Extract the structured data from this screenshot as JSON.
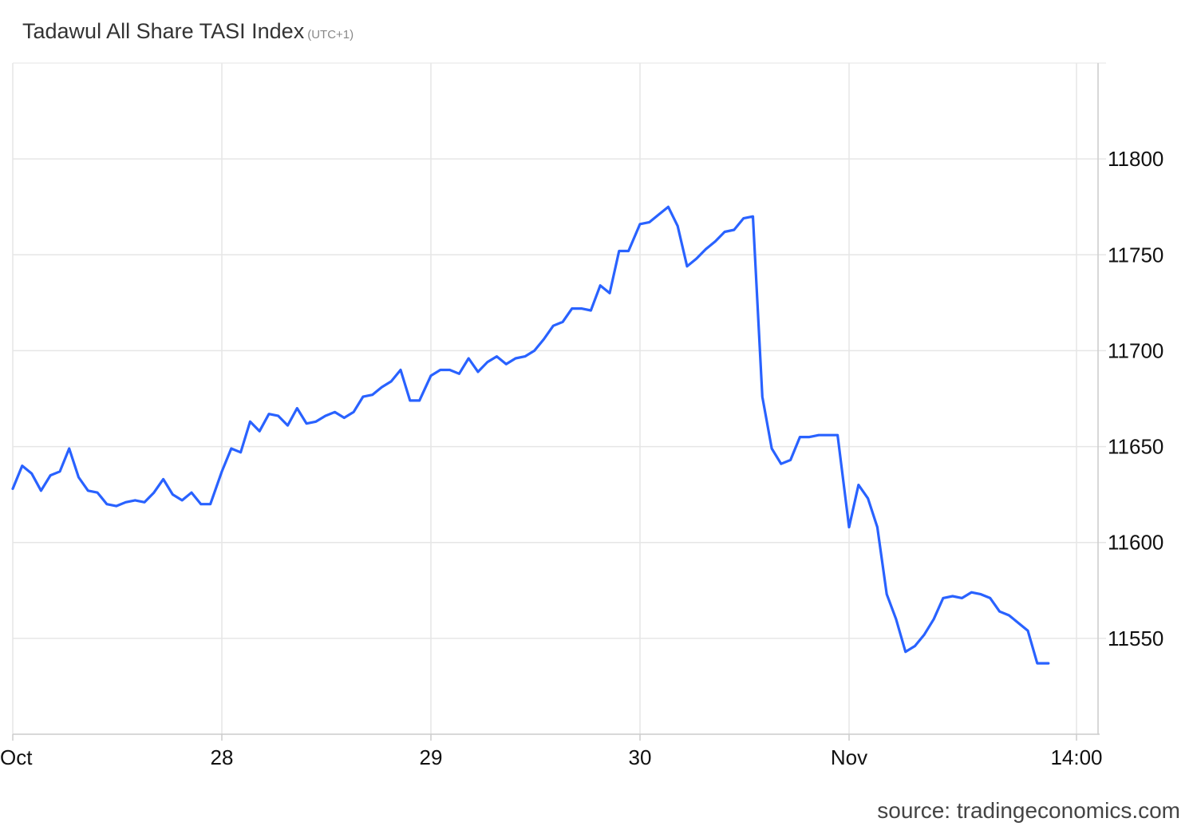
{
  "chart_data": {
    "type": "line",
    "title": "Tadawul All Share TASI Index",
    "subtitle": "(UTC+1)",
    "source": "source: tradingeconomics.com",
    "x_tick_labels": [
      "Oct",
      "28",
      "29",
      "30",
      "Nov",
      "14:00"
    ],
    "y_ticks": [
      11550,
      11600,
      11650,
      11700,
      11750,
      11800
    ],
    "ylim": [
      11500,
      11850
    ],
    "grid": true,
    "line_color": "#2962ff",
    "x_unit": "days since start of Oct 27",
    "x": [
      0,
      0.045,
      0.09,
      0.135,
      0.18,
      0.225,
      0.27,
      0.315,
      0.36,
      0.405,
      0.45,
      0.495,
      0.54,
      0.585,
      0.63,
      0.675,
      0.72,
      0.765,
      0.81,
      0.855,
      0.9,
      0.945,
      1.0,
      1.045,
      1.09,
      1.135,
      1.18,
      1.225,
      1.27,
      1.315,
      1.36,
      1.405,
      1.45,
      1.495,
      1.54,
      1.585,
      1.63,
      1.675,
      1.72,
      1.765,
      1.81,
      1.855,
      1.9,
      1.945,
      2.0,
      2.045,
      2.09,
      2.135,
      2.18,
      2.225,
      2.27,
      2.315,
      2.36,
      2.405,
      2.45,
      2.495,
      2.54,
      2.585,
      2.63,
      2.675,
      2.72,
      2.765,
      2.81,
      2.855,
      2.9,
      2.945,
      3.0,
      3.045,
      3.09,
      3.135,
      3.18,
      3.225,
      3.27,
      3.315,
      3.36,
      3.405,
      3.45,
      3.495,
      3.54,
      3.585,
      3.63,
      3.675,
      3.72,
      3.765,
      3.81,
      3.855,
      3.9,
      3.945,
      4.0,
      4.045,
      4.09,
      4.135,
      4.18,
      4.225,
      4.27,
      4.315,
      4.36,
      4.405,
      4.45,
      4.495,
      4.54,
      4.585,
      4.63,
      4.675,
      4.72,
      4.765,
      4.81,
      4.855,
      4.9
    ],
    "y": [
      11628,
      11640,
      11636,
      11627,
      11635,
      11637,
      11649,
      11634,
      11627,
      11626,
      11620,
      11619,
      11621,
      11622,
      11621,
      11626,
      11633,
      11625,
      11622,
      11626,
      11620,
      11620,
      11637,
      11649,
      11647,
      11663,
      11658,
      11667,
      11666,
      11661,
      11670,
      11662,
      11663,
      11666,
      11668,
      11665,
      11668,
      11676,
      11677,
      11681,
      11684,
      11690,
      11674,
      11674,
      11687,
      11690,
      11690,
      11688,
      11696,
      11689,
      11694,
      11697,
      11693,
      11696,
      11697,
      11700,
      11706,
      11713,
      11715,
      11722,
      11722,
      11721,
      11734,
      11730,
      11752,
      11752,
      11766,
      11767,
      11771,
      11775,
      11765,
      11744,
      11748,
      11753,
      11757,
      11762,
      11763,
      11769,
      11770,
      11676,
      11649,
      11641,
      11643,
      11655,
      11655,
      11656,
      11656,
      11656,
      11608,
      11630,
      11623,
      11608,
      11573,
      11560,
      11543,
      11546,
      11552,
      11560,
      11571,
      11572,
      11571,
      11574,
      11573,
      11571,
      11564,
      11562,
      11558,
      11554,
      11537
    ]
  }
}
